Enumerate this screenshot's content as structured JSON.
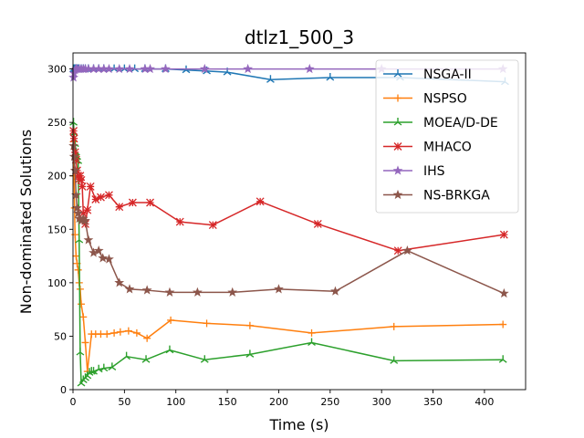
{
  "chart_data": {
    "type": "line",
    "title": "dtlz1_500_3",
    "xlabel": "Time (s)",
    "ylabel": "Non-dominated Solutions",
    "xlim": [
      0,
      440
    ],
    "ylim": [
      0,
      315
    ],
    "xticks": [
      0,
      50,
      100,
      150,
      200,
      250,
      300,
      350,
      400
    ],
    "yticks": [
      0,
      50,
      100,
      150,
      200,
      250,
      300
    ],
    "legend_position": "top-right",
    "grid": false,
    "series": [
      {
        "name": "NSGA-II",
        "color": "#1f77b4",
        "marker": "tri",
        "x": [
          0.5,
          1,
          1.5,
          2,
          2.5,
          3,
          4,
          5,
          6,
          8,
          10,
          12,
          15,
          20,
          25,
          30,
          40,
          50,
          60,
          70,
          90,
          110,
          130,
          150,
          192,
          250,
          318,
          420
        ],
        "y": [
          300,
          300,
          300,
          300,
          300,
          300,
          300,
          300,
          300,
          300,
          300,
          300,
          300,
          300,
          300,
          300,
          300,
          300,
          300,
          300,
          300,
          299,
          298,
          297,
          290,
          292,
          292,
          288
        ]
      },
      {
        "name": "NSPSO",
        "color": "#ff7f0e",
        "marker": "plus",
        "x": [
          0.5,
          1,
          1.5,
          2,
          3,
          4,
          5,
          6,
          7,
          8,
          10,
          12,
          14,
          18,
          22,
          27,
          33,
          40,
          46,
          54,
          62,
          72,
          95,
          130,
          172,
          232,
          312,
          418
        ],
        "y": [
          232,
          200,
          170,
          145,
          125,
          118,
          112,
          100,
          94,
          80,
          68,
          44,
          17,
          52,
          52,
          52,
          52,
          53,
          54,
          55,
          53,
          48,
          65,
          62,
          60,
          53,
          59,
          61
        ]
      },
      {
        "name": "MOEA/D-DE",
        "color": "#2ca02c",
        "marker": "tri",
        "x": [
          0.5,
          1,
          2,
          3,
          4,
          5,
          6,
          7,
          8,
          10,
          12,
          14,
          16,
          18,
          20,
          25,
          30,
          38,
          52,
          71,
          94,
          128,
          172,
          232,
          312,
          418
        ],
        "y": [
          250,
          240,
          230,
          222,
          218,
          214,
          140,
          35,
          6,
          9,
          11,
          13,
          16,
          17,
          17,
          19,
          20,
          21,
          31,
          28,
          37,
          28,
          33,
          44,
          27,
          28
        ]
      },
      {
        "name": "MHACO",
        "color": "#d62728",
        "marker": "x",
        "x": [
          0.5,
          1,
          2,
          3,
          4,
          5,
          6,
          7,
          8,
          9,
          10,
          12,
          14,
          17,
          22,
          27,
          35,
          45,
          58,
          75,
          104,
          136,
          182,
          238,
          316,
          419
        ],
        "y": [
          242,
          235,
          222,
          215,
          205,
          200,
          197,
          200,
          196,
          190,
          165,
          155,
          168,
          190,
          178,
          180,
          182,
          171,
          175,
          175,
          157,
          154,
          176,
          155,
          130,
          145
        ]
      },
      {
        "name": "IHS",
        "color": "#9467bd",
        "marker": "star",
        "x": [
          0.5,
          1,
          2,
          3,
          4,
          6,
          8,
          10,
          12,
          15,
          20,
          25,
          30,
          35,
          45,
          55,
          70,
          75,
          90,
          128,
          170,
          230,
          300,
          418
        ],
        "y": [
          292,
          296,
          299,
          300,
          300,
          300,
          300,
          300,
          300,
          300,
          300,
          300,
          300,
          300,
          300,
          300,
          300,
          300,
          300,
          300,
          300,
          300,
          300,
          300
        ]
      },
      {
        "name": "NS-BRKGA",
        "color": "#8c564b",
        "marker": "star",
        "x": [
          0.5,
          1,
          2,
          3,
          4,
          5,
          6,
          8,
          10,
          12,
          15,
          20,
          25,
          29,
          35,
          45,
          55,
          72,
          94,
          121,
          155,
          200,
          255,
          325,
          419
        ],
        "y": [
          228,
          218,
          205,
          182,
          170,
          165,
          160,
          158,
          160,
          158,
          140,
          128,
          130,
          123,
          122,
          100,
          94,
          93,
          91,
          91,
          91,
          94,
          92,
          130,
          90
        ]
      }
    ]
  }
}
